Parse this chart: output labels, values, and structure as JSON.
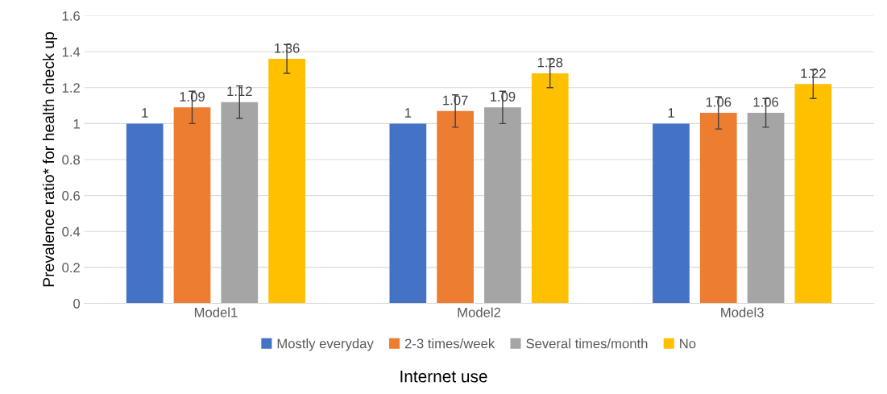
{
  "chart_data": {
    "type": "bar",
    "xlabel": "Internet use",
    "ylabel": "Prevalence ratio* for health check up",
    "categories": [
      "Model1",
      "Model2",
      "Model3"
    ],
    "series": [
      {
        "name": "Mostly everyday",
        "color": "#4472c4",
        "values": [
          1,
          1,
          1
        ]
      },
      {
        "name": "2-3 times/week",
        "color": "#ed7d31",
        "values": [
          1.09,
          1.07,
          1.06
        ],
        "errors": [
          [
            1.0,
            1.18
          ],
          [
            0.98,
            1.16
          ],
          [
            0.97,
            1.15
          ]
        ]
      },
      {
        "name": "Several times/month",
        "color": "#a5a5a5",
        "values": [
          1.12,
          1.09,
          1.06
        ],
        "errors": [
          [
            1.03,
            1.21
          ],
          [
            1.0,
            1.18
          ],
          [
            0.98,
            1.14
          ]
        ]
      },
      {
        "name": "No",
        "color": "#ffc000",
        "values": [
          1.36,
          1.28,
          1.22
        ],
        "errors": [
          [
            1.28,
            1.44
          ],
          [
            1.2,
            1.36
          ],
          [
            1.14,
            1.3
          ]
        ]
      }
    ],
    "ylim": [
      0,
      1.6
    ],
    "yticks": [
      0,
      {
        "value": 0.2,
        "label": "0.2"
      },
      {
        "value": 0.4,
        "label": "0.4"
      },
      {
        "value": 0.6,
        "label": "0.6"
      },
      {
        "value": 0.8,
        "label": "0.8"
      },
      1,
      {
        "value": 1.2,
        "label": "1.2"
      },
      {
        "value": 1.4,
        "label": "1.4"
      },
      {
        "value": 1.6,
        "label": "1.6"
      }
    ],
    "grid": "y",
    "legend": "bottom",
    "data_labels": true
  }
}
